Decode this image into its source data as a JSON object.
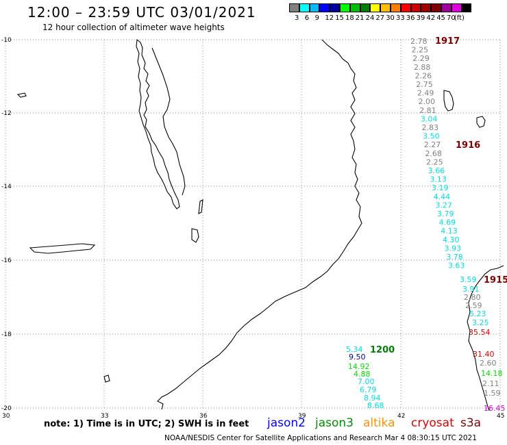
{
  "header": {
    "title": "12:00 – 23:59 UTC 03/01/2021",
    "subtitle": "12 hour collection of altimeter wave heights"
  },
  "scale": {
    "colors": [
      "#808080",
      "#00ffff",
      "#00bfff",
      "#0000ff",
      "#0000a0",
      "#00ff00",
      "#00c000",
      "#008000",
      "#ffff00",
      "#ffc000",
      "#ff8000",
      "#ff0000",
      "#d00000",
      "#a00000",
      "#800000",
      "#a000a0",
      "#e000e0",
      "#000000"
    ],
    "labels": [
      "3",
      "6",
      "9",
      "12",
      "15",
      "18",
      "21",
      "24",
      "27",
      "30",
      "33",
      "36",
      "39",
      "42",
      "45",
      "70",
      "(ft)"
    ]
  },
  "map": {
    "lat_labels": [
      "-10",
      "-12",
      "-14",
      "-16",
      "-18",
      "-20"
    ],
    "lon_labels": [
      "30",
      "33",
      "36",
      "39",
      "42",
      "45"
    ],
    "track_labels": [
      {
        "text": "1917",
        "color": "#800000"
      },
      {
        "text": "1916",
        "color": "#800000"
      },
      {
        "text": "1915",
        "color": "#800000"
      },
      {
        "text": "1200",
        "color": "#008000"
      }
    ],
    "track_1917": {
      "values": [
        "2.78",
        "2.25",
        "2.29",
        "2.88",
        "2.26",
        "2.75",
        "2.49",
        "2.00",
        "2.81",
        "3.04",
        "2.83",
        "3.50",
        "2.27",
        "2.68",
        "2.25",
        "3.66",
        "3.13",
        "3.19",
        "4.44",
        "3.27",
        "3.79",
        "4.69",
        "4.13",
        "4.30",
        "3.93",
        "3.78",
        "3.63"
      ],
      "colors": [
        "#808080",
        "#808080",
        "#808080",
        "#808080",
        "#808080",
        "#808080",
        "#808080",
        "#808080",
        "#808080",
        "#00e0e0",
        "#808080",
        "#00e0e0",
        "#808080",
        "#808080",
        "#808080",
        "#00e0e0",
        "#00e0e0",
        "#00e0e0",
        "#00e0e0",
        "#00e0e0",
        "#00e0e0",
        "#00e0e0",
        "#00e0e0",
        "#00e0e0",
        "#00e0e0",
        "#00e0e0",
        "#00e0e0"
      ]
    },
    "track_1915": {
      "values": [
        "3.59",
        "3.91",
        "2.80",
        "2.59",
        "5.23",
        "3.25",
        "35.54",
        "31.40",
        "2.60",
        "14.18",
        "2.11",
        "1.59",
        "16.45"
      ],
      "colors": [
        "#00e0e0",
        "#00e0e0",
        "#808080",
        "#808080",
        "#00e0e0",
        "#00e0e0",
        "#e00000",
        "#e00000",
        "#808080",
        "#00e000",
        "#808080",
        "#808080",
        "#e000e0"
      ]
    },
    "track_1200": {
      "values": [
        "5.34",
        "9.50",
        "14.92",
        "4.88",
        "7.00",
        "6.79",
        "8.94",
        "8.68"
      ],
      "colors": [
        "#00e0e0",
        "#0000a0",
        "#00e000",
        "#00e000",
        "#00e0e0",
        "#00e0e0",
        "#00e0e0",
        "#00e0e0"
      ]
    }
  },
  "footer": {
    "note": "note: 1) Time is in UTC; 2) SWH is in feet",
    "legend": [
      {
        "text": "jason2",
        "color": "#0000ff"
      },
      {
        "text": "jason3",
        "color": "#009000"
      },
      {
        "text": "altika",
        "color": "#ff9000"
      },
      {
        "text": "cryosat",
        "color": "#e00000"
      },
      {
        "text": "s3a",
        "color": "#800000"
      }
    ],
    "credit": "NOAA/NESDIS Center for Satellite Applications and Research   Mar  4 08:30:15 UTC 2021"
  }
}
